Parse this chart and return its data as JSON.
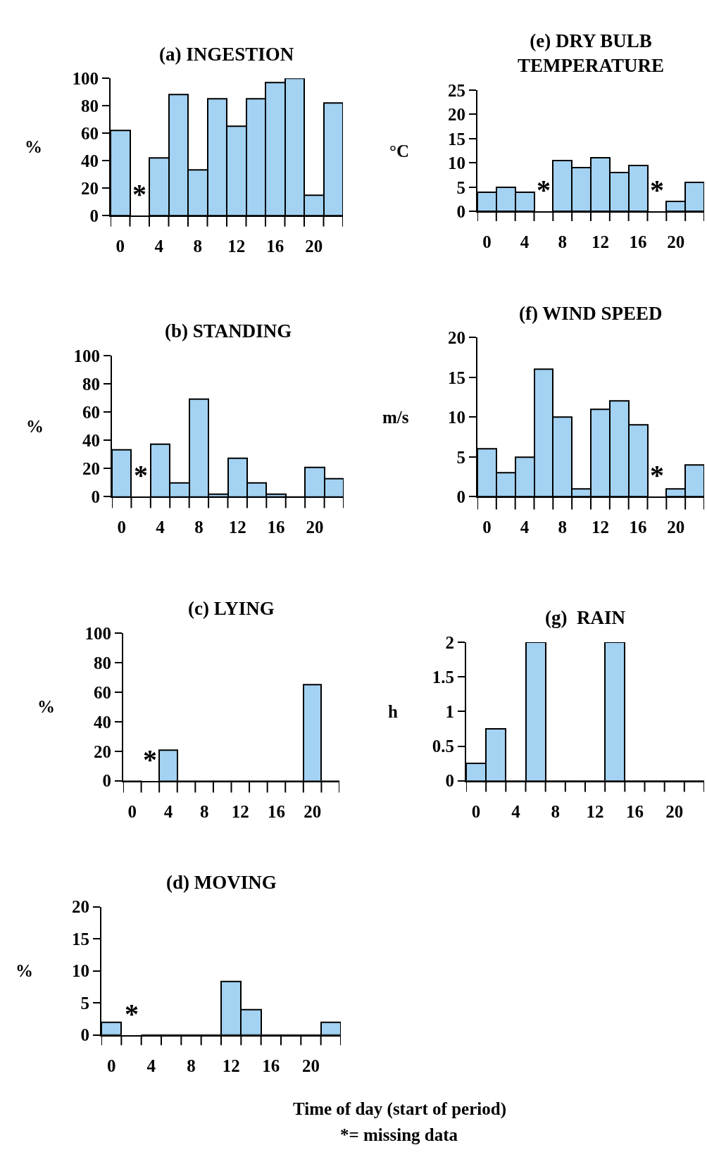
{
  "chart_data": [
    {
      "type": "bar",
      "title": "(a) INGESTION",
      "ylabel": "%",
      "categories": [
        "0",
        null,
        "4",
        null,
        "8",
        null,
        "12",
        null,
        "16",
        null,
        "20",
        null
      ],
      "values": [
        62,
        null,
        42,
        88,
        33,
        85,
        65,
        85,
        97,
        100,
        15,
        82
      ],
      "value_labels": [
        null,
        "*",
        null,
        null,
        null,
        null,
        null,
        null,
        null,
        null,
        null,
        null
      ],
      "color": "#a3d2f2",
      "ylim": [
        0,
        100
      ],
      "yticks": [
        0,
        20,
        40,
        60,
        80,
        100
      ]
    },
    {
      "type": "bar",
      "title": "(e) DRY BULB\nTEMPERATURE",
      "ylabel": "°C",
      "categories": [
        "0",
        null,
        "4",
        null,
        "8",
        null,
        "12",
        null,
        "16",
        null,
        "20",
        null
      ],
      "values": [
        4,
        5,
        4,
        null,
        10.5,
        9,
        11,
        8,
        9.5,
        null,
        2,
        6
      ],
      "value_labels": [
        null,
        null,
        null,
        "*",
        null,
        null,
        null,
        null,
        null,
        "*",
        null,
        null
      ],
      "color": "#a3d2f2",
      "ylim": [
        0,
        25
      ],
      "yticks": [
        0,
        5,
        10,
        15,
        20,
        25
      ]
    },
    {
      "type": "bar",
      "title": "(b) STANDING",
      "ylabel": "%",
      "categories": [
        "0",
        null,
        "4",
        null,
        "8",
        null,
        "12",
        null,
        "16",
        null,
        "20",
        null
      ],
      "values": [
        33,
        null,
        37,
        10,
        69,
        2,
        27,
        10,
        2,
        0,
        21,
        13
      ],
      "value_labels": [
        null,
        "*",
        null,
        null,
        null,
        null,
        null,
        null,
        null,
        null,
        null,
        null
      ],
      "color": "#a3d2f2",
      "ylim": [
        0,
        100
      ],
      "yticks": [
        0,
        20,
        40,
        60,
        80,
        100
      ]
    },
    {
      "type": "bar",
      "title": "(f) WIND SPEED",
      "ylabel": "m/s",
      "categories": [
        "0",
        null,
        "4",
        null,
        "8",
        null,
        "12",
        null,
        "16",
        null,
        "20",
        null
      ],
      "values": [
        6,
        3,
        5,
        16,
        10,
        1,
        11,
        12,
        9,
        null,
        1,
        4
      ],
      "value_labels": [
        null,
        null,
        null,
        null,
        null,
        null,
        null,
        null,
        null,
        "*",
        null,
        null
      ],
      "color": "#a3d2f2",
      "ylim": [
        0,
        20
      ],
      "yticks": [
        0,
        5,
        10,
        15,
        20
      ]
    },
    {
      "type": "bar",
      "title": "(c) LYING",
      "ylabel": "%",
      "categories": [
        "0",
        null,
        "4",
        null,
        "8",
        null,
        "12",
        null,
        "16",
        null,
        "20",
        null
      ],
      "values": [
        0,
        null,
        21,
        0,
        0,
        0,
        0,
        0,
        0,
        0,
        65,
        0
      ],
      "value_labels": [
        null,
        "*",
        null,
        null,
        null,
        null,
        null,
        null,
        null,
        null,
        null,
        null
      ],
      "color": "#a3d2f2",
      "ylim": [
        0,
        100
      ],
      "yticks": [
        0,
        20,
        40,
        60,
        80,
        100
      ]
    },
    {
      "type": "bar",
      "title": "(g)  RAIN",
      "ylabel": "h",
      "categories": [
        "0",
        null,
        "4",
        null,
        "8",
        null,
        "12",
        null,
        "16",
        null,
        "20",
        null
      ],
      "values": [
        0.25,
        0.75,
        0,
        2,
        0,
        0,
        0,
        2,
        0,
        0,
        0,
        0
      ],
      "color": "#a3d2f2",
      "ylim": [
        0,
        2
      ],
      "yticks": [
        0,
        0.5,
        1,
        1.5,
        2
      ]
    },
    {
      "type": "bar",
      "title": "(d) MOVING",
      "ylabel": "%",
      "categories": [
        "0",
        null,
        "4",
        null,
        "8",
        null,
        "12",
        null,
        "16",
        null,
        "20",
        null
      ],
      "values": [
        2,
        null,
        0,
        0,
        0,
        0,
        8.3,
        4,
        0,
        0,
        0,
        2
      ],
      "value_labels": [
        null,
        "*",
        null,
        null,
        null,
        null,
        null,
        null,
        null,
        null,
        null,
        null
      ],
      "color": "#a3d2f2",
      "ylim": [
        0,
        20
      ],
      "yticks": [
        0,
        5,
        10,
        15,
        20
      ],
      "annotations": [
        "Time of day (start of period)",
        "*= missing data"
      ]
    }
  ]
}
